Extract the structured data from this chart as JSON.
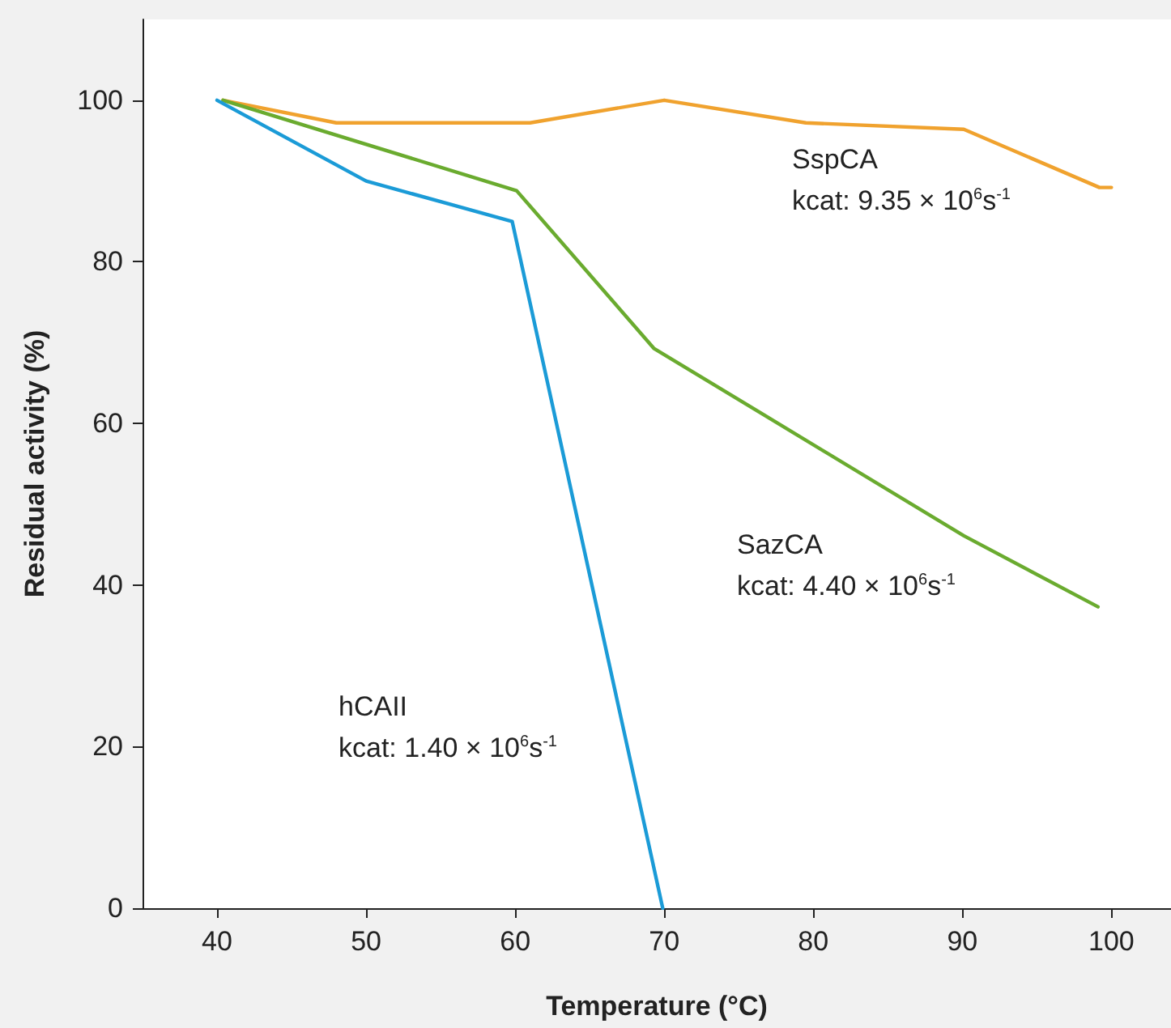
{
  "chart_data": {
    "type": "line",
    "xlabel": "Temperature (°C)",
    "ylabel": "Residual activity (%)",
    "xlim": [
      35,
      104
    ],
    "xticks": [
      40,
      50,
      60,
      70,
      80,
      90,
      100
    ],
    "ylim": [
      0,
      110
    ],
    "yticks": [
      0,
      20,
      40,
      60,
      80,
      100
    ],
    "grid": false,
    "marker": "none",
    "line_style": "solid",
    "series": [
      {
        "color": "#f0a22e",
        "x": [
          40.4,
          48,
          61,
          70,
          79.5,
          90.1,
          99.2,
          100
        ],
        "values": [
          100,
          97.2,
          97.2,
          100,
          97.2,
          96.4,
          89.2,
          89.2
        ]
      },
      {
        "color": "#6aab2f",
        "x": [
          40.4,
          60.1,
          69.3,
          90.1,
          99.1
        ],
        "values": [
          100,
          88.8,
          69.3,
          46.1,
          37.3
        ]
      },
      {
        "color": "#1b9bd7",
        "x": [
          40,
          50,
          59.8,
          69.9
        ],
        "values": [
          100,
          90,
          85,
          0
        ]
      }
    ],
    "annotations": [
      "SspCA\nkcat: 9.35 × 10$^{6}$s$^{-1}$",
      "SazCA\nkcat: 4.40 × 10$^{6}$s$^{-1}$",
      "hCAII\nkcat: 1.40 × 10$^{6}$s$^{-1}$"
    ]
  }
}
